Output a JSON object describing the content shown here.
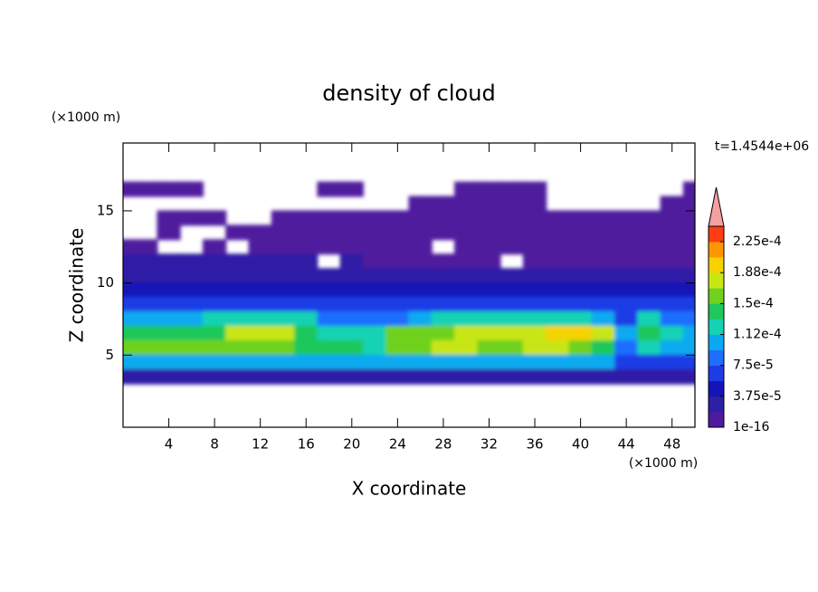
{
  "chart_data": {
    "type": "contour",
    "title": "density of cloud",
    "xlabel": "X coordinate",
    "ylabel": "Z coordinate",
    "x_unit": "(×1000 m)",
    "y_unit": "(×1000 m)",
    "time_label": "t=1.4544e+06",
    "xlim": [
      0,
      50
    ],
    "ylim": [
      0,
      19.7
    ],
    "xticks": [
      4,
      8,
      12,
      16,
      20,
      24,
      28,
      32,
      36,
      40,
      44,
      48
    ],
    "yticks": [
      5,
      10,
      15
    ],
    "x": [
      0,
      2,
      4,
      6,
      8,
      10,
      12,
      14,
      16,
      18,
      20,
      22,
      24,
      26,
      28,
      30,
      32,
      34,
      36,
      38,
      40,
      42,
      44,
      46,
      48,
      50
    ],
    "z": [
      16.5,
      15.5,
      14.5,
      13.5,
      12.5,
      11.5,
      10.5,
      9.5,
      8.5,
      7.5,
      6.5,
      5.5,
      4.5,
      3.5
    ],
    "values": [
      [
        1e-05,
        1e-05,
        1e-05,
        1e-05,
        0,
        0,
        0,
        0,
        0,
        1e-05,
        1e-05,
        0,
        0,
        0,
        0,
        1e-05,
        1e-05,
        1e-05,
        1e-05,
        0,
        0,
        0,
        0,
        0,
        0,
        1e-05
      ],
      [
        0,
        0,
        0,
        0,
        0,
        0,
        0,
        0,
        0,
        0,
        0,
        0,
        0,
        1e-05,
        1e-05,
        1e-05,
        1e-05,
        1e-05,
        1e-05,
        0,
        0,
        0,
        0,
        0,
        1e-05,
        1e-05
      ],
      [
        0,
        0,
        1e-05,
        1e-05,
        1e-05,
        0,
        0,
        1e-05,
        1e-05,
        1e-05,
        1e-05,
        1e-05,
        1e-05,
        1e-05,
        1e-05,
        1e-05,
        1e-05,
        1e-05,
        1e-05,
        1e-05,
        1e-05,
        1e-05,
        1e-05,
        1e-05,
        1e-05,
        1e-05
      ],
      [
        0,
        0,
        1e-05,
        0,
        0,
        1e-05,
        1e-05,
        1e-05,
        1e-05,
        1e-05,
        1e-05,
        1e-05,
        1e-05,
        1e-05,
        1e-05,
        1e-05,
        1e-05,
        1e-05,
        1e-05,
        1e-05,
        1e-05,
        1e-05,
        1e-05,
        1e-05,
        1e-05,
        1e-05
      ],
      [
        1e-05,
        1e-05,
        0,
        0,
        1e-05,
        0,
        1e-05,
        1e-05,
        1e-05,
        1e-05,
        1e-05,
        1e-05,
        1e-05,
        1e-05,
        0,
        1e-05,
        1e-05,
        1e-05,
        1e-05,
        1e-05,
        1e-05,
        1e-05,
        1e-05,
        1e-05,
        1e-05,
        1e-05
      ],
      [
        2e-05,
        2e-05,
        2e-05,
        2e-05,
        2e-05,
        2e-05,
        2e-05,
        2e-05,
        2e-05,
        0,
        2e-05,
        1.2e-05,
        1.2e-05,
        1.2e-05,
        1.2e-05,
        1.2e-05,
        1.2e-05,
        0,
        1.2e-05,
        1.2e-05,
        1.2e-05,
        1.2e-05,
        1.2e-05,
        1.2e-05,
        1.2e-05,
        1.2e-05
      ],
      [
        2.5e-05,
        2.5e-05,
        2.5e-05,
        2.5e-05,
        2.5e-05,
        2.5e-05,
        2.5e-05,
        2.5e-05,
        2.5e-05,
        2.5e-05,
        2.5e-05,
        2.5e-05,
        2.5e-05,
        2e-05,
        2e-05,
        2e-05,
        2e-05,
        2e-05,
        2e-05,
        2e-05,
        2e-05,
        2e-05,
        3e-05,
        3e-05,
        3e-05,
        2e-05
      ],
      [
        4e-05,
        4e-05,
        4e-05,
        4e-05,
        4e-05,
        4e-05,
        5e-05,
        5e-05,
        5e-05,
        4e-05,
        4e-05,
        4e-05,
        4e-05,
        4e-05,
        5e-05,
        5e-05,
        5e-05,
        5e-05,
        4e-05,
        4e-05,
        4e-05,
        4e-05,
        5e-05,
        5e-05,
        5e-05,
        4e-05
      ],
      [
        7e-05,
        6e-05,
        6e-05,
        6e-05,
        7e-05,
        7e-05,
        7e-05,
        6e-05,
        6e-05,
        6e-05,
        6e-05,
        6e-05,
        6e-05,
        6e-05,
        7e-05,
        7e-05,
        7e-05,
        7e-05,
        7e-05,
        6e-05,
        6e-05,
        6e-05,
        6e-05,
        7e-05,
        6e-05,
        6e-05
      ],
      [
        0.00011,
        0.00011,
        0.00011,
        0.0001,
        0.00012,
        0.00012,
        0.00012,
        0.00012,
        0.00012,
        8e-05,
        8e-05,
        8e-05,
        8e-05,
        0.0001,
        0.00012,
        0.00012,
        0.00012,
        0.00012,
        0.00012,
        0.00012,
        0.00012,
        0.0001,
        7e-05,
        0.00013,
        9e-05,
        8e-05
      ],
      [
        0.00015,
        0.00015,
        0.00015,
        0.00015,
        0.00015,
        0.00017,
        0.00017,
        0.00017,
        0.00015,
        0.00012,
        0.00012,
        0.00012,
        0.00016,
        0.00016,
        0.00016,
        0.000175,
        0.000175,
        0.000175,
        0.00017,
        0.0002,
        0.0002,
        0.00017,
        0.00011,
        0.00014,
        0.00012,
        0.0001
      ],
      [
        0.00016,
        0.00016,
        0.00016,
        0.00016,
        0.00016,
        0.00016,
        0.00016,
        0.00016,
        0.00015,
        0.00014,
        0.00014,
        0.00013,
        0.00016,
        0.00016,
        0.00017,
        0.00017,
        0.00016,
        0.00016,
        0.00017,
        0.00017,
        0.00016,
        0.00015,
        9e-05,
        0.00012,
        0.00011,
        0.00011
      ],
      [
        0.000105,
        0.000105,
        0.000105,
        0.000105,
        0.000105,
        0.000105,
        0.000105,
        0.000105,
        0.000105,
        0.000105,
        0.000105,
        0.000105,
        0.000105,
        0.000105,
        0.000105,
        0.000105,
        0.000105,
        0.000105,
        0.000105,
        0.000105,
        0.000105,
        0.000105,
        7e-05,
        7e-05,
        7e-05,
        7e-05
      ],
      [
        3.5e-05,
        3.5e-05,
        3.5e-05,
        3.5e-05,
        3.5e-05,
        3.5e-05,
        3.5e-05,
        3.5e-05,
        3.5e-05,
        3.5e-05,
        3.5e-05,
        3.5e-05,
        3.5e-05,
        3.5e-05,
        3.5e-05,
        3.5e-05,
        3.5e-05,
        3.5e-05,
        3.5e-05,
        3.5e-05,
        3.5e-05,
        3.5e-05,
        3.5e-05,
        3.5e-05,
        3.5e-05,
        3.5e-05
      ]
    ],
    "clim": [
      1e-16,
      0.00024375
    ],
    "colors": [
      "#4f1a9e",
      "#2d1fa6",
      "#1414b8",
      "#1e3ce6",
      "#1e6eff",
      "#0aaaf0",
      "#14d2b4",
      "#1ec85a",
      "#6ed21e",
      "#c8e614",
      "#f5d200",
      "#ff9600",
      "#ff3c14"
    ],
    "extend_color": "#f5a0a0",
    "cbar_ticks": [
      1e-16,
      {
        "value": 3.75e-05,
        "label": "3.75e-5"
      },
      {
        "value": 7.5e-05,
        "label": "7.5e-5"
      },
      {
        "value": 0.0001125,
        "label": "1.12e-4"
      },
      {
        "value": 0.00015,
        "label": "1.5e-4"
      },
      {
        "value": 0.0001875,
        "label": "1.88e-4"
      },
      {
        "value": 0.000225,
        "label": "2.25e-4"
      }
    ]
  }
}
